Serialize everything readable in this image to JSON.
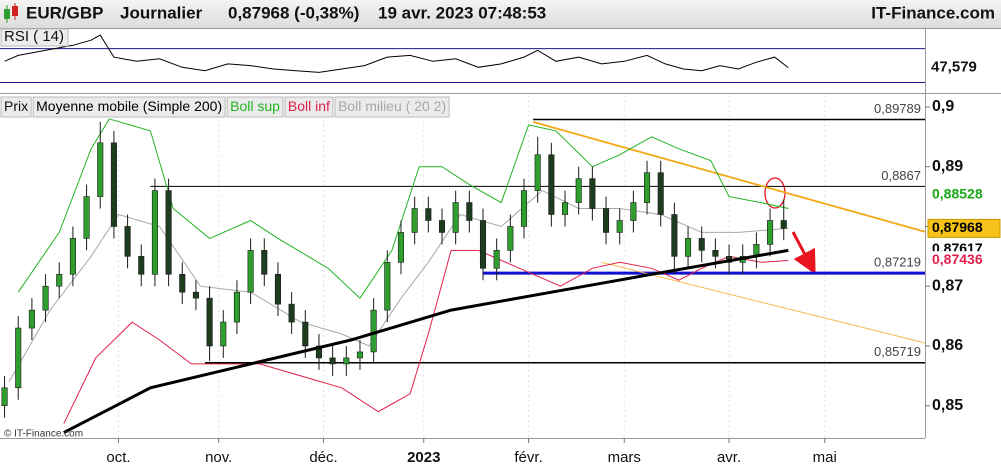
{
  "header": {
    "symbol": "EUR/GBP",
    "period": "Journalier",
    "quote": "0,87968 (-0,38%)",
    "datetime": "19 avr. 2023 07:48:53",
    "site": "IT-Finance.com"
  },
  "watermark": "© IT-Finance.com",
  "chart_data": [
    {
      "type": "line",
      "title": "RSI ( 14)",
      "color": "#000000",
      "xlim": [
        0,
        203
      ],
      "ylim": [
        20,
        92
      ],
      "levels": [
        70,
        30
      ],
      "level_color": "#1a1a8c",
      "x": [
        1,
        4,
        8,
        12,
        16,
        20,
        22,
        25,
        30,
        35,
        40,
        45,
        50,
        55,
        60,
        65,
        70,
        75,
        80,
        85,
        90,
        95,
        100,
        105,
        110,
        115,
        118,
        122,
        127,
        132,
        137,
        142,
        146,
        150,
        154,
        158,
        162,
        166,
        170,
        173
      ],
      "values": [
        55,
        62,
        66,
        70,
        74,
        80,
        86,
        60,
        55,
        58,
        48,
        44,
        52,
        50,
        46,
        44,
        42,
        46,
        50,
        60,
        62,
        55,
        58,
        48,
        52,
        60,
        68,
        55,
        60,
        52,
        55,
        62,
        52,
        46,
        44,
        50,
        46,
        54,
        60,
        47.579
      ],
      "last_label": {
        "value": 47.579,
        "label": "47,579"
      }
    },
    {
      "type": "candlestick",
      "xlim": [
        0,
        203
      ],
      "ylim": [
        0.8446,
        0.902
      ],
      "xticks": [
        {
          "value": 26,
          "label": "oct."
        },
        {
          "value": 48,
          "label": "nov."
        },
        {
          "value": 71,
          "label": "déc."
        },
        {
          "value": 93,
          "label": "2023"
        },
        {
          "value": 116,
          "label": "févr."
        },
        {
          "value": 137,
          "label": "mars"
        },
        {
          "value": 160,
          "label": "avr."
        },
        {
          "value": 181,
          "label": "mai"
        }
      ],
      "yticks": [
        {
          "value": 0.9,
          "label": "0,9"
        },
        {
          "value": 0.89,
          "label": "0,89"
        },
        {
          "value": 0.88,
          "label": "0,88"
        },
        {
          "value": 0.87,
          "label": "0,87"
        },
        {
          "value": 0.86,
          "label": "0,86"
        },
        {
          "value": 0.85,
          "label": "0,85"
        }
      ],
      "candles": {
        "name": "Prix",
        "up_color": "#2f9e2f",
        "down_color": "#1e3d1e",
        "x": [
          1,
          4,
          7,
          10,
          13,
          16,
          19,
          22,
          25,
          28,
          31,
          34,
          37,
          40,
          43,
          46,
          49,
          52,
          55,
          58,
          61,
          64,
          67,
          70,
          73,
          76,
          79,
          82,
          85,
          88,
          91,
          94,
          97,
          100,
          103,
          106,
          109,
          112,
          115,
          118,
          121,
          124,
          127,
          130,
          133,
          136,
          139,
          142,
          145,
          148,
          151,
          154,
          157,
          160,
          163,
          166,
          169,
          172
        ],
        "open": [
          0.85,
          0.853,
          0.863,
          0.866,
          0.87,
          0.872,
          0.878,
          0.885,
          0.894,
          0.88,
          0.875,
          0.872,
          0.886,
          0.872,
          0.869,
          0.868,
          0.86,
          0.864,
          0.869,
          0.876,
          0.872,
          0.867,
          0.864,
          0.86,
          0.858,
          0.857,
          0.858,
          0.859,
          0.866,
          0.874,
          0.879,
          0.883,
          0.881,
          0.879,
          0.884,
          0.881,
          0.873,
          0.876,
          0.88,
          0.886,
          0.892,
          0.882,
          0.884,
          0.888,
          0.883,
          0.879,
          0.881,
          0.884,
          0.889,
          0.882,
          0.875,
          0.878,
          0.876,
          0.875,
          0.874,
          0.875,
          0.877,
          0.881
        ],
        "high": [
          0.855,
          0.865,
          0.868,
          0.872,
          0.874,
          0.88,
          0.887,
          0.8975,
          0.896,
          0.882,
          0.877,
          0.888,
          0.888,
          0.874,
          0.871,
          0.87,
          0.866,
          0.871,
          0.878,
          0.878,
          0.874,
          0.869,
          0.866,
          0.862,
          0.86,
          0.86,
          0.861,
          0.868,
          0.876,
          0.881,
          0.885,
          0.885,
          0.883,
          0.886,
          0.886,
          0.883,
          0.878,
          0.882,
          0.888,
          0.895,
          0.894,
          0.886,
          0.89,
          0.89,
          0.885,
          0.883,
          0.886,
          0.891,
          0.891,
          0.884,
          0.88,
          0.88,
          0.878,
          0.877,
          0.877,
          0.879,
          0.883,
          0.8845
        ],
        "low": [
          0.848,
          0.851,
          0.861,
          0.864,
          0.868,
          0.87,
          0.876,
          0.883,
          0.878,
          0.873,
          0.87,
          0.87,
          0.87,
          0.867,
          0.866,
          0.8575,
          0.858,
          0.862,
          0.867,
          0.87,
          0.865,
          0.862,
          0.858,
          0.856,
          0.855,
          0.855,
          0.856,
          0.857,
          0.864,
          0.872,
          0.877,
          0.879,
          0.877,
          0.877,
          0.879,
          0.871,
          0.871,
          0.874,
          0.878,
          0.884,
          0.88,
          0.88,
          0.882,
          0.881,
          0.877,
          0.877,
          0.879,
          0.882,
          0.88,
          0.872,
          0.873,
          0.874,
          0.873,
          0.872,
          0.872,
          0.873,
          0.875,
          0.8777
        ],
        "close": [
          0.853,
          0.863,
          0.866,
          0.87,
          0.872,
          0.878,
          0.885,
          0.894,
          0.88,
          0.875,
          0.872,
          0.886,
          0.872,
          0.869,
          0.868,
          0.86,
          0.864,
          0.869,
          0.876,
          0.872,
          0.867,
          0.864,
          0.86,
          0.858,
          0.857,
          0.858,
          0.859,
          0.866,
          0.874,
          0.879,
          0.883,
          0.881,
          0.879,
          0.884,
          0.881,
          0.873,
          0.876,
          0.88,
          0.886,
          0.892,
          0.882,
          0.884,
          0.888,
          0.883,
          0.879,
          0.881,
          0.884,
          0.889,
          0.882,
          0.875,
          0.878,
          0.876,
          0.875,
          0.874,
          0.875,
          0.877,
          0.881,
          0.8797
        ]
      },
      "series": [
        {
          "name": "Moyenne mobile (Simple 200)",
          "color": "#000000",
          "width": 3,
          "x": [
            14,
            33,
            55,
            77,
            99,
            121,
            143,
            173
          ],
          "values": [
            0.8455,
            0.853,
            0.857,
            0.861,
            0.866,
            0.869,
            0.872,
            0.876
          ]
        },
        {
          "name": "Boll sup",
          "color": "#22b422",
          "width": 1,
          "x": [
            4,
            13,
            20,
            24,
            33,
            38,
            46,
            55,
            61,
            72,
            79,
            86,
            92,
            97,
            103,
            110,
            116,
            122,
            130,
            136,
            143,
            149,
            156,
            160,
            167,
            173
          ],
          "values": [
            0.869,
            0.879,
            0.893,
            0.898,
            0.896,
            0.883,
            0.878,
            0.881,
            0.878,
            0.873,
            0.868,
            0.876,
            0.89,
            0.89,
            0.887,
            0.884,
            0.897,
            0.896,
            0.89,
            0.892,
            0.895,
            0.893,
            0.891,
            0.885,
            0.884,
            0.883
          ]
        },
        {
          "name": "Boll inf",
          "color": "#e0204a",
          "width": 1,
          "x": [
            14,
            21,
            29,
            35,
            42,
            48,
            57,
            66,
            75,
            83,
            90,
            94,
            99,
            105,
            114,
            123,
            130,
            136,
            143,
            149,
            154,
            160,
            167,
            173
          ],
          "values": [
            0.847,
            0.858,
            0.864,
            0.861,
            0.857,
            0.857,
            0.857,
            0.855,
            0.853,
            0.849,
            0.852,
            0.862,
            0.876,
            0.876,
            0.873,
            0.87,
            0.873,
            0.874,
            0.873,
            0.871,
            0.873,
            0.875,
            0.874,
            0.8743
          ]
        },
        {
          "name": "Boll milieu ( 20 2)",
          "color": "#a8a8a8",
          "width": 1,
          "x": [
            2,
            11,
            20,
            26,
            35,
            44,
            55,
            66,
            75,
            81,
            88,
            94,
            101,
            110,
            119,
            127,
            136,
            145,
            154,
            162,
            173
          ],
          "values": [
            0.854,
            0.866,
            0.875,
            0.882,
            0.88,
            0.87,
            0.869,
            0.864,
            0.862,
            0.86,
            0.868,
            0.874,
            0.882,
            0.88,
            0.886,
            0.883,
            0.883,
            0.882,
            0.879,
            0.879,
            0.8797
          ]
        }
      ],
      "levels": [
        {
          "value": 0.89789,
          "label": "0,89789",
          "x_start": 117,
          "color": "#000000",
          "width": 1.5
        },
        {
          "value": 0.8867,
          "label": "0,8867",
          "x_start": 33,
          "color": "#000000",
          "width": 1
        },
        {
          "value": 0.87219,
          "label": "0,87219",
          "x_start": 106,
          "color": "#1010d0",
          "width": 3
        },
        {
          "value": 0.85719,
          "label": "0,85719",
          "x_start": 45,
          "color": "#000000",
          "width": 1.5
        }
      ],
      "trendlines": [
        {
          "x": [
            117,
            203
          ],
          "values": [
            0.8975,
            0.8791
          ],
          "color": "#f5a818",
          "width": 1.8
        },
        {
          "x": [
            132,
            203
          ],
          "values": [
            0.874,
            0.8605
          ],
          "color": "#f5b84a",
          "width": 1
        }
      ],
      "price_labels": [
        {
          "value": 0.88528,
          "label": "0,88528",
          "color": "#1aa81a",
          "box": "#ffffff"
        },
        {
          "value": 0.87968,
          "label": "0,87968",
          "color": "#000000",
          "box": "#f7c21a"
        },
        {
          "value": 0.87617,
          "label": "0,87617",
          "color": "#000000",
          "box": "#ffffff"
        },
        {
          "value": 0.87436,
          "label": "0,87436",
          "color": "#e0204a",
          "box": "#ffffff"
        }
      ]
    }
  ]
}
